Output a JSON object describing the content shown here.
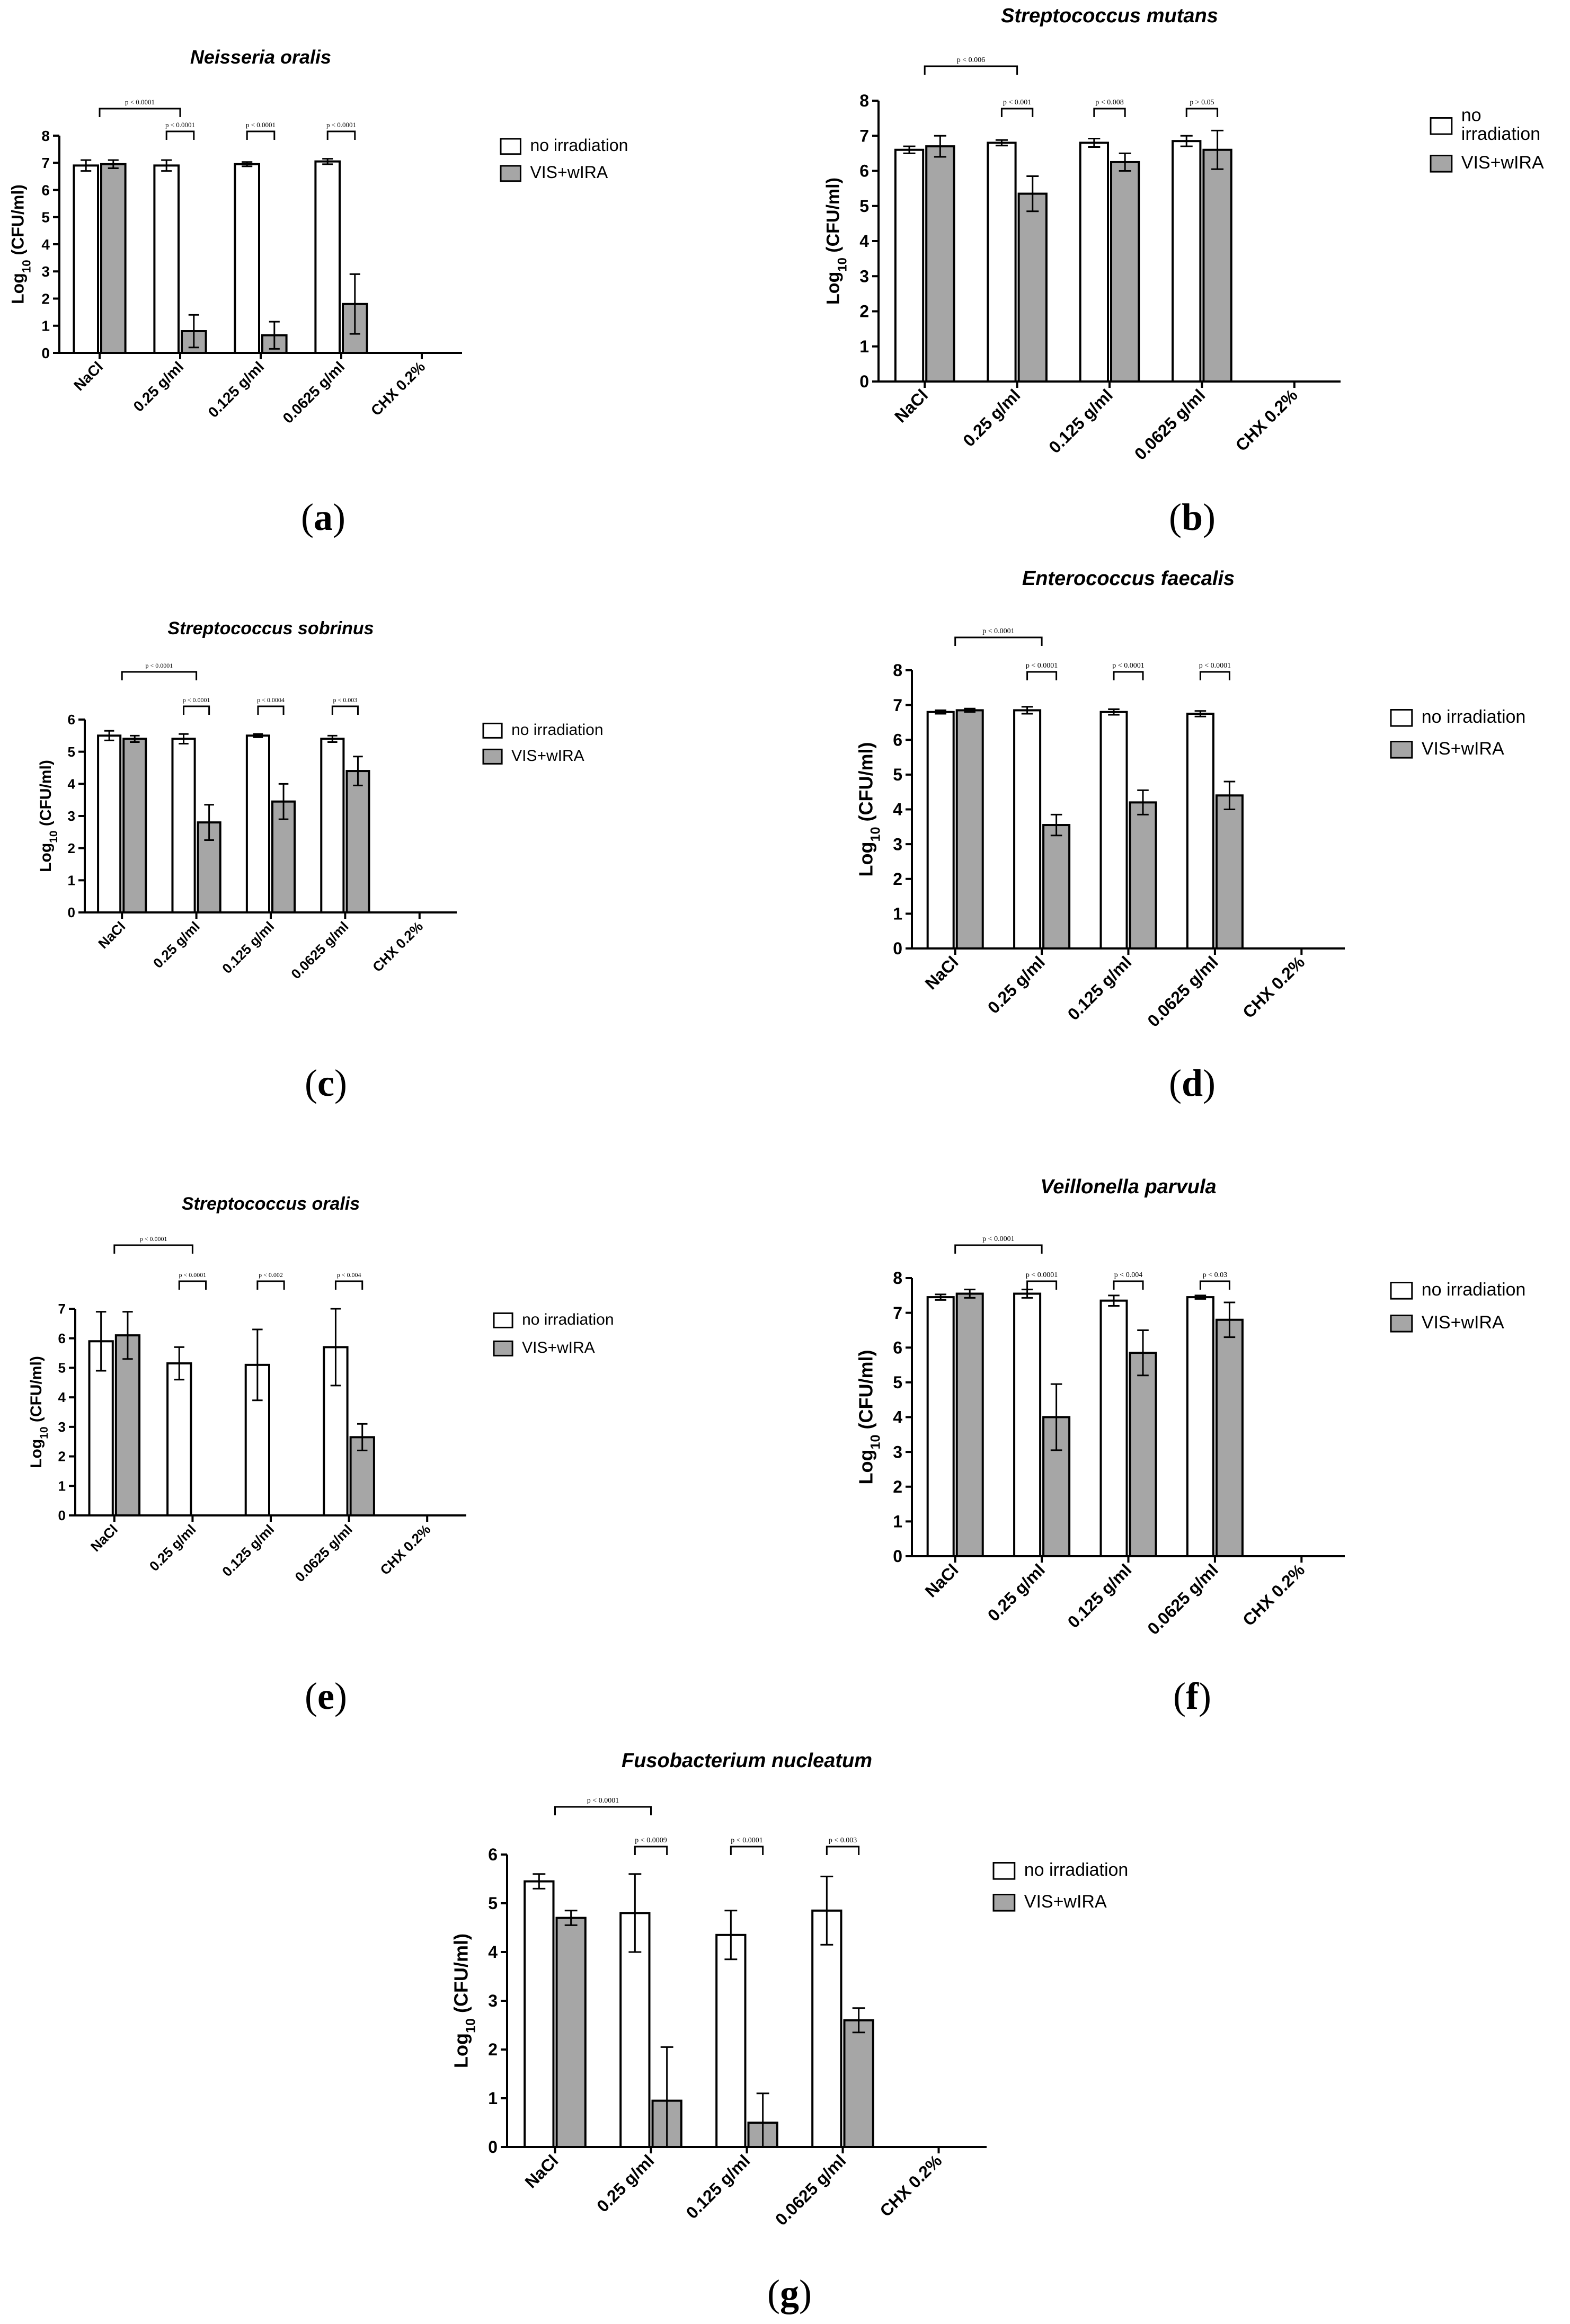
{
  "legend": {
    "no_irradiation": "no irradiation",
    "vis_wira": "VIS+wIRA"
  },
  "colors": {
    "no_irradiation": "#ffffff",
    "vis_wira": "#a6a6a6",
    "stroke": "#000000"
  },
  "chart_data": [
    {
      "panel": "(a)",
      "type": "bar",
      "title": "Neisseria oralis",
      "ylabel": "Log10 (CFU/ml)",
      "ylim": [
        0,
        8
      ],
      "yticks": [
        0,
        1,
        2,
        3,
        4,
        5,
        6,
        7,
        8
      ],
      "categories": [
        "NaCl",
        "0.25 g/ml",
        "0.125 g/ml",
        "0.0625 g/ml",
        "CHX 0.2%"
      ],
      "series": [
        {
          "name": "no irradiation",
          "values": [
            6.9,
            6.9,
            6.95,
            7.05,
            0
          ],
          "errors": [
            0.2,
            0.2,
            0.08,
            0.1,
            0
          ]
        },
        {
          "name": "VIS+wIRA",
          "values": [
            6.95,
            0.8,
            0.65,
            1.8,
            0
          ],
          "errors": [
            0.15,
            0.6,
            0.5,
            1.1,
            0
          ]
        }
      ],
      "significance": [
        {
          "from": 0,
          "to": 1,
          "label": "p < 0.0001"
        },
        {
          "category": 1,
          "label": "p < 0.0001"
        },
        {
          "category": 2,
          "label": "p < 0.0001"
        },
        {
          "category": 3,
          "label": "p < 0.0001"
        }
      ]
    },
    {
      "panel": "(b)",
      "type": "bar",
      "title": "Streptococcus mutans",
      "ylabel": "Log10 (CFU/ml)",
      "ylim": [
        0,
        8
      ],
      "yticks": [
        0,
        1,
        2,
        3,
        4,
        5,
        6,
        7,
        8
      ],
      "categories": [
        "NaCl",
        "0.25 g/ml",
        "0.125 g/ml",
        "0.0625 g/ml",
        "CHX 0.2%"
      ],
      "series": [
        {
          "name": "no irradiation",
          "values": [
            6.6,
            6.8,
            6.8,
            6.85,
            0
          ],
          "errors": [
            0.1,
            0.08,
            0.12,
            0.15,
            0
          ]
        },
        {
          "name": "VIS+wIRA",
          "values": [
            6.7,
            5.35,
            6.25,
            6.6,
            0
          ],
          "errors": [
            0.3,
            0.5,
            0.25,
            0.55,
            0
          ]
        }
      ],
      "significance": [
        {
          "from": 0,
          "to": 1,
          "label": "p < 0.006"
        },
        {
          "category": 1,
          "label": "p < 0.001"
        },
        {
          "category": 2,
          "label": "p < 0.008"
        },
        {
          "category": 3,
          "label": "p > 0.05"
        }
      ]
    },
    {
      "panel": "(c)",
      "type": "bar",
      "title": "Streptococcus sobrinus",
      "ylabel": "Log10 (CFU/ml)",
      "ylim": [
        0,
        6
      ],
      "yticks": [
        0,
        1,
        2,
        3,
        4,
        5,
        6
      ],
      "categories": [
        "NaCl",
        "0.25 g/ml",
        "0.125 g/ml",
        "0.0625 g/ml",
        "CHX 0.2%"
      ],
      "series": [
        {
          "name": "no irradiation",
          "values": [
            5.5,
            5.4,
            5.5,
            5.4,
            0
          ],
          "errors": [
            0.15,
            0.15,
            0.05,
            0.1,
            0
          ]
        },
        {
          "name": "VIS+wIRA",
          "values": [
            5.4,
            2.8,
            3.45,
            4.4,
            0
          ],
          "errors": [
            0.1,
            0.55,
            0.55,
            0.45,
            0
          ]
        }
      ],
      "significance": [
        {
          "from": 0,
          "to": 1,
          "label": "p < 0.0001"
        },
        {
          "category": 1,
          "label": "p < 0.0001"
        },
        {
          "category": 2,
          "label": "p < 0.0004"
        },
        {
          "category": 3,
          "label": "p < 0.003"
        }
      ]
    },
    {
      "panel": "(d)",
      "type": "bar",
      "title": "Enterococcus faecalis",
      "ylabel": "Log10 (CFU/ml)",
      "ylim": [
        0,
        8
      ],
      "yticks": [
        0,
        1,
        2,
        3,
        4,
        5,
        6,
        7,
        8
      ],
      "categories": [
        "NaCl",
        "0.25 g/ml",
        "0.125 g/ml",
        "0.0625 g/ml",
        "CHX 0.2%"
      ],
      "series": [
        {
          "name": "no irradiation",
          "values": [
            6.8,
            6.85,
            6.8,
            6.75,
            0
          ],
          "errors": [
            0.05,
            0.1,
            0.08,
            0.08,
            0
          ]
        },
        {
          "name": "VIS+wIRA",
          "values": [
            6.85,
            3.55,
            4.2,
            4.4,
            0
          ],
          "errors": [
            0.05,
            0.3,
            0.35,
            0.4,
            0
          ]
        }
      ],
      "significance": [
        {
          "from": 0,
          "to": 1,
          "label": "p < 0.0001"
        },
        {
          "category": 1,
          "label": "p < 0.0001"
        },
        {
          "category": 2,
          "label": "p < 0.0001"
        },
        {
          "category": 3,
          "label": "p < 0.0001"
        }
      ]
    },
    {
      "panel": "(e)",
      "type": "bar",
      "title": "Streptococcus oralis",
      "ylabel": "Log10 (CFU/ml)",
      "ylim": [
        0,
        7
      ],
      "yticks": [
        0,
        1,
        2,
        3,
        4,
        5,
        6,
        7
      ],
      "categories": [
        "NaCl",
        "0.25 g/ml",
        "0.125 g/ml",
        "0.0625 g/ml",
        "CHX 0.2%"
      ],
      "series": [
        {
          "name": "no irradiation",
          "values": [
            5.9,
            5.15,
            5.1,
            5.7,
            0
          ],
          "errors": [
            1.0,
            0.55,
            1.2,
            1.3,
            0
          ]
        },
        {
          "name": "VIS+wIRA",
          "values": [
            6.1,
            0,
            0,
            2.65,
            0
          ],
          "errors": [
            0.8,
            0,
            0,
            0.45,
            0
          ]
        }
      ],
      "significance": [
        {
          "from": 0,
          "to": 1,
          "label": "p < 0.0001"
        },
        {
          "category": 1,
          "label": "p < 0.0001"
        },
        {
          "category": 2,
          "label": "p < 0.002"
        },
        {
          "category": 3,
          "label": "p < 0.004"
        }
      ]
    },
    {
      "panel": "(f)",
      "type": "bar",
      "title": "Veillonella parvula",
      "ylabel": "Log10 (CFU/ml)",
      "ylim": [
        0,
        8
      ],
      "yticks": [
        0,
        1,
        2,
        3,
        4,
        5,
        6,
        7,
        8
      ],
      "categories": [
        "NaCl",
        "0.25 g/ml",
        "0.125 g/ml",
        "0.0625 g/ml",
        "CHX 0.2%"
      ],
      "series": [
        {
          "name": "no irradiation",
          "values": [
            7.45,
            7.55,
            7.35,
            7.45,
            0
          ],
          "errors": [
            0.08,
            0.12,
            0.15,
            0.05,
            0
          ]
        },
        {
          "name": "VIS+wIRA",
          "values": [
            7.55,
            4.0,
            5.85,
            6.8,
            0
          ],
          "errors": [
            0.12,
            0.95,
            0.65,
            0.5,
            0
          ]
        }
      ],
      "significance": [
        {
          "from": 0,
          "to": 1,
          "label": "p < 0.0001"
        },
        {
          "category": 1,
          "label": "p < 0.0001"
        },
        {
          "category": 2,
          "label": "p < 0.004"
        },
        {
          "category": 3,
          "label": "p < 0.03"
        }
      ]
    },
    {
      "panel": "(g)",
      "type": "bar",
      "title": "Fusobacterium nucleatum",
      "ylabel": "Log10 (CFU/ml)",
      "ylim": [
        0,
        6
      ],
      "yticks": [
        0,
        1,
        2,
        3,
        4,
        5,
        6
      ],
      "categories": [
        "NaCl",
        "0.25 g/ml",
        "0.125 g/ml",
        "0.0625 g/ml",
        "CHX 0.2%"
      ],
      "series": [
        {
          "name": "no irradiation",
          "values": [
            5.45,
            4.8,
            4.35,
            4.85,
            0
          ],
          "errors": [
            0.15,
            0.8,
            0.5,
            0.7,
            0
          ]
        },
        {
          "name": "VIS+wIRA",
          "values": [
            4.7,
            0.95,
            0.5,
            2.6,
            0
          ],
          "errors": [
            0.15,
            1.1,
            0.6,
            0.25,
            0
          ]
        }
      ],
      "significance": [
        {
          "from": 0,
          "to": 1,
          "label": "p < 0.0001"
        },
        {
          "category": 1,
          "label": "p < 0.0009"
        },
        {
          "category": 2,
          "label": "p < 0.0001"
        },
        {
          "category": 3,
          "label": "p < 0.003"
        }
      ]
    }
  ]
}
